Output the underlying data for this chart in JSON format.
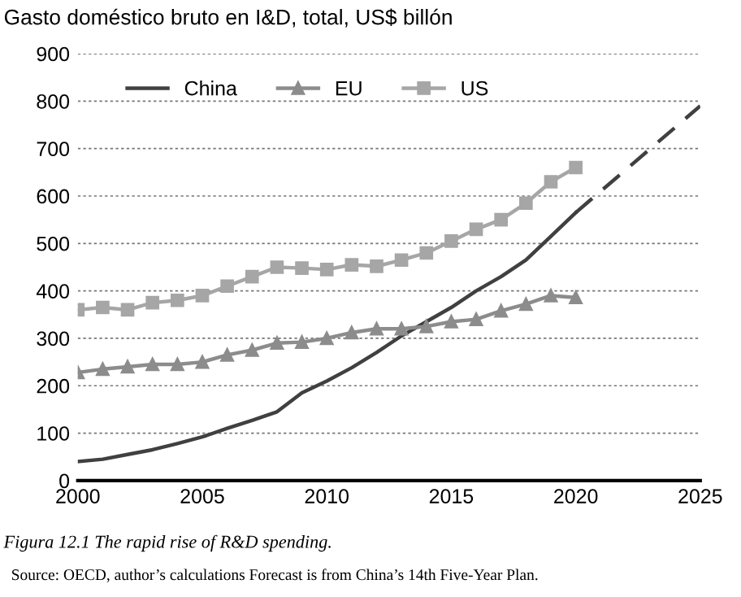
{
  "chart_data": {
    "type": "line",
    "title": "Gasto doméstico bruto en I&D, total, US$ billón",
    "x": [
      2000,
      2001,
      2002,
      2003,
      2004,
      2005,
      2006,
      2007,
      2008,
      2009,
      2010,
      2011,
      2012,
      2013,
      2014,
      2015,
      2016,
      2017,
      2018,
      2019,
      2020
    ],
    "series": [
      {
        "name": "China",
        "color": "#404040",
        "marker": "none",
        "values": [
          40,
          45,
          55,
          65,
          78,
          92,
          110,
          127,
          145,
          185,
          210,
          238,
          270,
          305,
          335,
          365,
          400,
          430,
          465,
          515,
          565
        ]
      },
      {
        "name": "EU",
        "color": "#8c8c8c",
        "marker": "triangle",
        "values": [
          228,
          235,
          240,
          245,
          245,
          250,
          265,
          275,
          290,
          292,
          300,
          312,
          320,
          320,
          325,
          335,
          340,
          358,
          372,
          390,
          386
        ]
      },
      {
        "name": "US",
        "color": "#a6a6a6",
        "marker": "square",
        "values": [
          360,
          365,
          360,
          375,
          380,
          390,
          410,
          430,
          450,
          448,
          445,
          455,
          452,
          465,
          480,
          505,
          530,
          550,
          585,
          630,
          660
        ]
      },
      {
        "color": "#404040",
        "marker": "none",
        "line_style": "dashed",
        "x": [
          2020,
          2025
        ],
        "values": [
          565,
          790
        ]
      }
    ],
    "xlim": [
      2000,
      2025
    ],
    "xticks": [
      2000,
      2005,
      2010,
      2015,
      2020,
      2025
    ],
    "ylim": [
      0,
      900
    ],
    "yticks": [
      0,
      100,
      200,
      300,
      400,
      500,
      600,
      700,
      800,
      900
    ],
    "grid": "y",
    "legend": "top left",
    "annotations": [
      "Figura 12.1 The rapid rise of R&D spending.",
      "Source: OECD, author’s calculations Forecast is from China’s 14th Five-Year Plan."
    ]
  }
}
